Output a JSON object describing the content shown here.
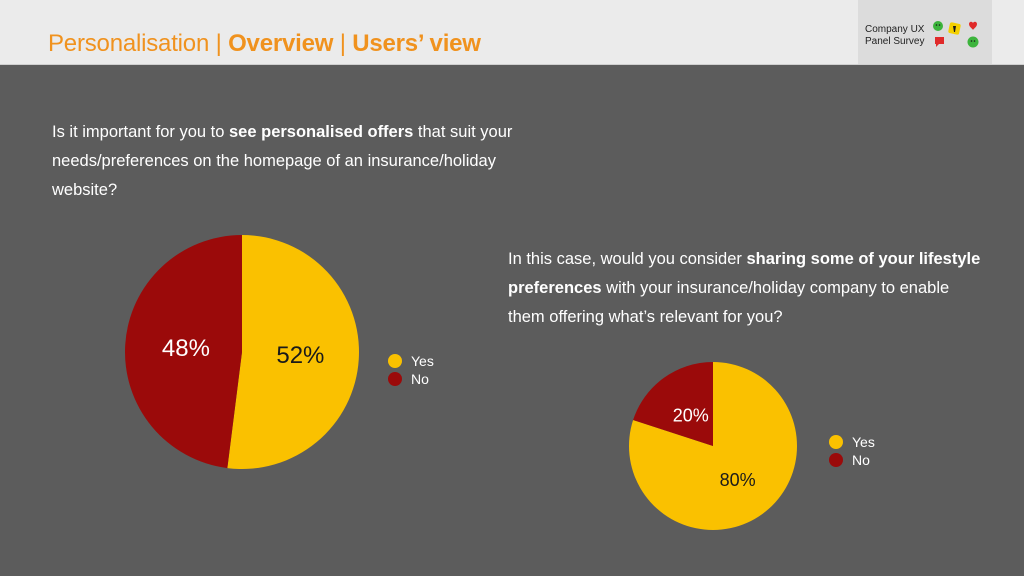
{
  "header": {
    "title_part1": "Personalisation",
    "sep1": " | ",
    "title_part2": "Overview",
    "sep2": " | ",
    "title_part3": "Users’ view"
  },
  "brand": {
    "line1": "Company UX",
    "line2": "Panel Survey",
    "icons": [
      "smiley-icon",
      "thumbs-up-icon",
      "lightbulb-icon",
      "heart-icon",
      "speech-bubble-icon",
      "sad-face-icon"
    ]
  },
  "question1": {
    "text_a": "Is it important for you to ",
    "text_b": "see personalised offers",
    "text_c": " that suit your needs/preferences on the homepage of an insurance/holiday website?"
  },
  "question2": {
    "text_a": "In this case, would you consider ",
    "text_b": "sharing some of your lifestyle preferences",
    "text_c": " with your insurance/holiday company to enable them offering what’s relevant for you?"
  },
  "colors": {
    "yes": "#fac100",
    "no": "#9b0a0a",
    "accent": "#f0921e"
  },
  "chart_data": [
    {
      "type": "pie",
      "title": "",
      "labels": [
        "Yes",
        "No"
      ],
      "values": [
        52,
        48
      ],
      "value_labels": [
        "52%",
        "48%"
      ],
      "legend": [
        "Yes",
        "No"
      ],
      "legend_position": "right"
    },
    {
      "type": "pie",
      "title": "",
      "labels": [
        "Yes",
        "No"
      ],
      "values": [
        80,
        20
      ],
      "value_labels": [
        "80%",
        "20%"
      ],
      "legend": [
        "Yes",
        "No"
      ],
      "legend_position": "right"
    }
  ]
}
